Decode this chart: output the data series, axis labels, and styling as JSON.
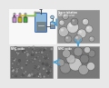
{
  "bg_color": "#e8e8e8",
  "left_panel_bg": "#f5f5f5",
  "bottle_colors": [
    "#c090c8",
    "#c8b820",
    "#48a840"
  ],
  "arrow_color": "#50a0d0",
  "reactor_color": "#90b8d8",
  "reactor_liquid": "#707878",
  "sem_tr_bg": "#909090",
  "sem_bl_bg": "#686868",
  "sem_br_bg": "#787878",
  "line_colors": [
    "#d870d8",
    "#c8b000",
    "#70c040",
    "#50a8c8"
  ],
  "label_color": "#222222",
  "top_right_label1": "Coprecipitation",
  "top_right_label2": "NMC precursor",
  "bot_right_label1": "NMC oxide",
  "bot_right_label2": "(as-fired)",
  "bot_left_label1": "NMC oxide",
  "bot_left_label2": "(calcined)"
}
